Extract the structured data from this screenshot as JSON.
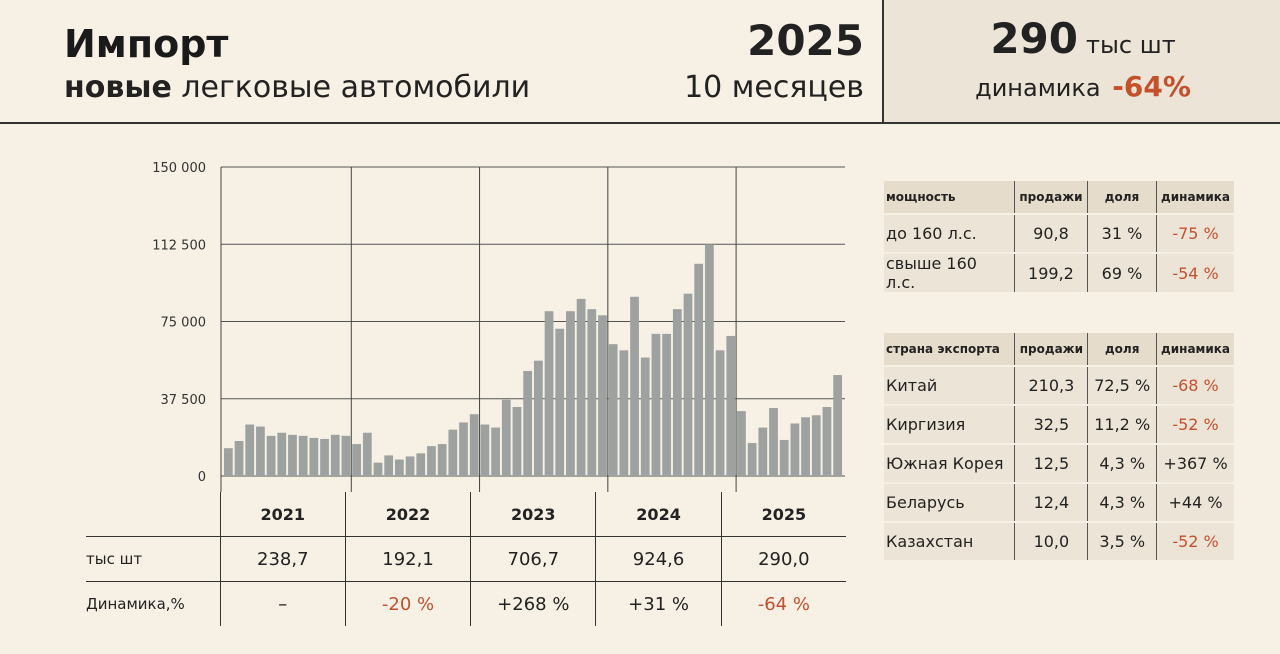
{
  "header": {
    "title": "Импорт",
    "subtitle_bold": "новые",
    "subtitle_rest": " легковые автомобили",
    "year": "2025",
    "period": "10 месяцев",
    "kpi_value": "290",
    "kpi_unit": "тыс шт",
    "kpi_dyn_label": "динамика",
    "kpi_dyn_value": "-64%"
  },
  "colors": {
    "bar": "#9da2a0",
    "negative": "#c5502c",
    "panel": "#ece4d6",
    "background": "#f7f1e5"
  },
  "chart_data": {
    "type": "bar",
    "ylim": [
      0,
      150000
    ],
    "y_ticks": [
      "0",
      "37 500",
      "75 000",
      "112 500",
      "150 000"
    ],
    "y_tick_values": [
      0,
      37500,
      75000,
      112500,
      150000
    ],
    "grid": "horizontal",
    "year_groups": [
      {
        "label": "2021",
        "months": 12
      },
      {
        "label": "2022",
        "months": 12
      },
      {
        "label": "2023",
        "months": 12
      },
      {
        "label": "2024",
        "months": 12
      },
      {
        "label": "2025",
        "months": 10
      }
    ],
    "values": [
      13500,
      17000,
      25000,
      24000,
      19500,
      21000,
      20000,
      19500,
      18500,
      18000,
      20000,
      19500,
      15500,
      21000,
      6500,
      10000,
      8000,
      9500,
      11000,
      14500,
      15500,
      22500,
      26000,
      30000,
      25000,
      23500,
      37000,
      33500,
      51000,
      56000,
      80000,
      71500,
      80000,
      86000,
      81000,
      78000,
      64000,
      61000,
      87000,
      57500,
      69000,
      69000,
      81000,
      88500,
      103000,
      112500,
      61000,
      68000,
      31500,
      16000,
      23500,
      33000,
      17500,
      25500,
      28500,
      29500,
      33500,
      49000
    ]
  },
  "year_table": {
    "years": [
      "2021",
      "2022",
      "2023",
      "2024",
      "2025"
    ],
    "row1_label": "тыс шт",
    "row1": [
      "238,7",
      "192,1",
      "706,7",
      "924,6",
      "290,0"
    ],
    "row2_label": "Динамика,%",
    "row2": [
      "–",
      "-20 %",
      "+268 %",
      "+31 %",
      "-64 %"
    ]
  },
  "power_table": {
    "headers": [
      "мощность",
      "продажи",
      "доля",
      "динамика"
    ],
    "rows": [
      [
        "до 160 л.с.",
        "90,8",
        "31 %",
        "-75 %"
      ],
      [
        "свыше 160 л.с.",
        "199,2",
        "69 %",
        "-54 %"
      ]
    ]
  },
  "country_table": {
    "headers": [
      "страна экспорта",
      "продажи",
      "доля",
      "динамика"
    ],
    "rows": [
      [
        "Китай",
        "210,3",
        "72,5 %",
        "-68 %"
      ],
      [
        "Киргизия",
        "32,5",
        "11,2 %",
        "-52 %"
      ],
      [
        "Южная Корея",
        "12,5",
        "4,3 %",
        "+367 %"
      ],
      [
        "Беларусь",
        "12,4",
        "4,3 %",
        "+44 %"
      ],
      [
        "Казахстан",
        "10,0",
        "3,5 %",
        "-52 %"
      ]
    ]
  }
}
